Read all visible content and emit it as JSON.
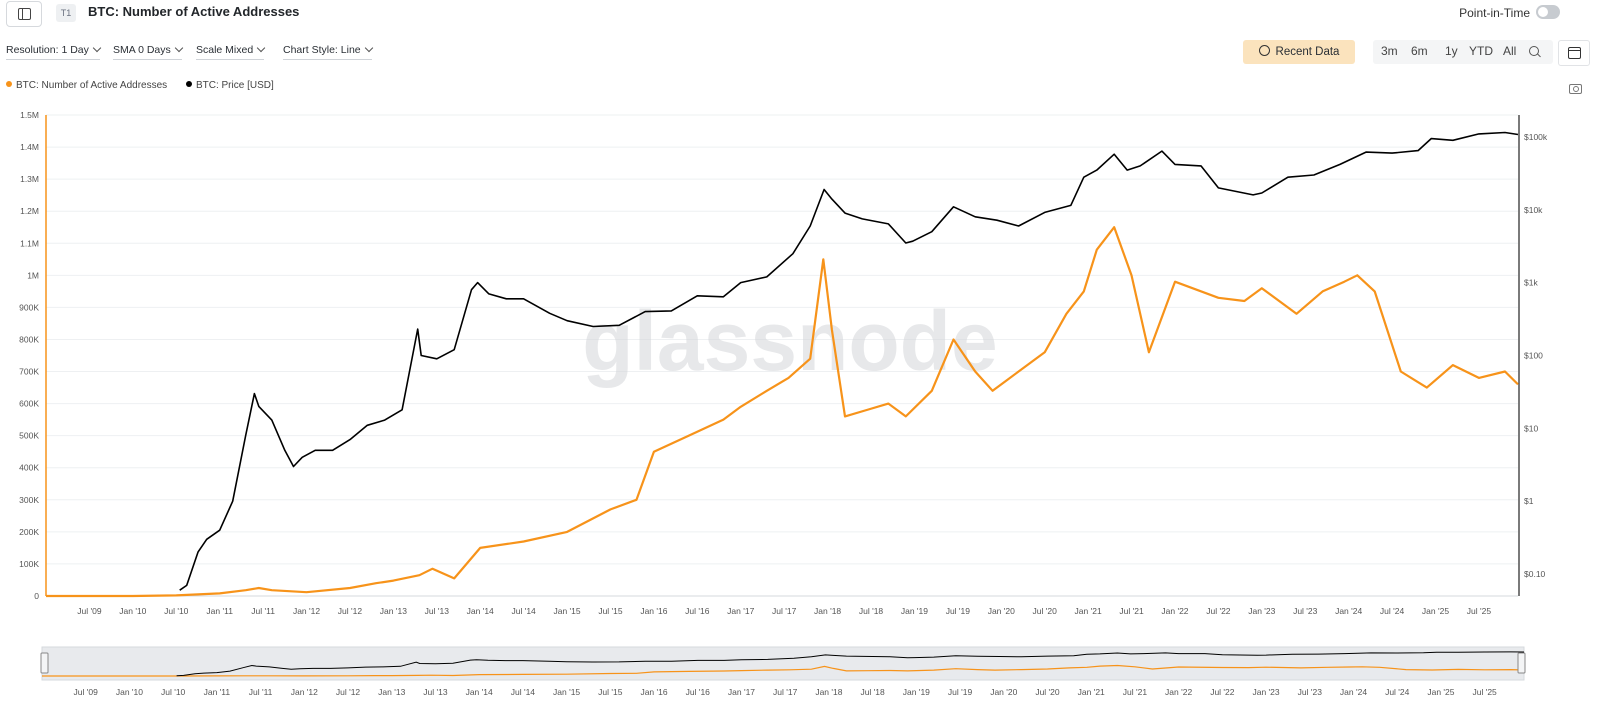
{
  "header": {
    "tag": "T1",
    "title": "BTC: Number of Active Addresses",
    "point_in_time_label": "Point-in-Time"
  },
  "controls": {
    "resolution": "Resolution: 1 Day",
    "sma": "SMA 0 Days",
    "scale": "Scale Mixed",
    "chart_style": "Chart Style: Line",
    "recent_data": "Recent Data",
    "ranges": [
      "3m",
      "6m",
      "1y",
      "YTD",
      "All"
    ]
  },
  "legend": {
    "items": [
      {
        "label": "BTC: Number of Active Addresses",
        "color": "#f7931a"
      },
      {
        "label": "BTC: Price [USD]",
        "color": "#000000"
      }
    ]
  },
  "watermark": "glassnode",
  "colors": {
    "addresses": "#f7931a",
    "price": "#000000",
    "navigator_bg": "#e8eaed"
  },
  "chart_data": {
    "type": "line",
    "title": "BTC: Number of Active Addresses",
    "x_tick_labels": [
      "Jul '09",
      "Jan '10",
      "Jul '10",
      "Jan '11",
      "Jul '11",
      "Jan '12",
      "Jul '12",
      "Jan '13",
      "Jul '13",
      "Jan '14",
      "Jul '14",
      "Jan '15",
      "Jul '15",
      "Jan '16",
      "Jul '16",
      "Jan '17",
      "Jul '17",
      "Jan '18",
      "Jul '18",
      "Jan '19",
      "Jul '19",
      "Jan '20",
      "Jul '20",
      "Jan '21",
      "Jul '21",
      "Jan '22",
      "Jul '22",
      "Jan '23",
      "Jul '23",
      "Jan '24",
      "Jul '24",
      "Jan '25",
      "Jul '25"
    ],
    "x_range": [
      2009.0,
      2025.95
    ],
    "y_left": {
      "label": "",
      "range": [
        0,
        1500000
      ],
      "tick_labels": [
        "0",
        "100K",
        "200K",
        "300K",
        "400K",
        "500K",
        "600K",
        "700K",
        "800K",
        "900K",
        "1M",
        "1.1M",
        "1.2M",
        "1.3M",
        "1.4M",
        "1.5M"
      ]
    },
    "y_right": {
      "label": "",
      "scale": "log",
      "range": [
        0.05,
        200000
      ],
      "ticks": [
        0.1,
        1,
        10,
        100,
        1000,
        10000,
        100000
      ],
      "tick_labels": [
        "$0.10",
        "$1",
        "$10",
        "$100",
        "$1k",
        "$10k",
        "$100k"
      ]
    },
    "grid": true,
    "series": [
      {
        "name": "BTC: Number of Active Addresses",
        "axis": "left",
        "color": "#f7931a",
        "x": [
          2009.0,
          2010.0,
          2010.5,
          2011.0,
          2011.3,
          2011.45,
          2011.6,
          2012.0,
          2012.5,
          2012.8,
          2013.0,
          2013.3,
          2013.45,
          2013.7,
          2014.0,
          2014.5,
          2015.0,
          2015.5,
          2015.8,
          2016.0,
          2016.4,
          2016.8,
          2017.0,
          2017.3,
          2017.55,
          2017.8,
          2017.95,
          2018.05,
          2018.2,
          2018.45,
          2018.7,
          2018.9,
          2019.2,
          2019.45,
          2019.7,
          2019.9,
          2020.2,
          2020.5,
          2020.75,
          2020.95,
          2021.1,
          2021.3,
          2021.5,
          2021.7,
          2022.0,
          2022.5,
          2022.8,
          2023.0,
          2023.4,
          2023.7,
          2023.95,
          2024.1,
          2024.3,
          2024.6,
          2024.9,
          2025.2,
          2025.5,
          2025.8,
          2025.95
        ],
        "values": [
          0,
          0,
          2000,
          8000,
          18000,
          25000,
          18000,
          12000,
          25000,
          40000,
          48000,
          65000,
          85000,
          55000,
          150000,
          170000,
          200000,
          270000,
          300000,
          450000,
          500000,
          550000,
          590000,
          640000,
          680000,
          740000,
          1050000,
          830000,
          560000,
          580000,
          600000,
          560000,
          640000,
          800000,
          700000,
          640000,
          700000,
          760000,
          880000,
          950000,
          1080000,
          1150000,
          1000000,
          760000,
          980000,
          930000,
          920000,
          960000,
          880000,
          950000,
          980000,
          1000000,
          950000,
          700000,
          650000,
          720000,
          680000,
          700000,
          660000
        ]
      },
      {
        "name": "BTC: Price [USD]",
        "axis": "right",
        "color": "#000000",
        "x": [
          2010.54,
          2010.62,
          2010.75,
          2010.85,
          2011.0,
          2011.15,
          2011.3,
          2011.4,
          2011.45,
          2011.6,
          2011.75,
          2011.85,
          2011.95,
          2012.1,
          2012.3,
          2012.5,
          2012.7,
          2012.9,
          2013.1,
          2013.28,
          2013.32,
          2013.5,
          2013.7,
          2013.9,
          2013.97,
          2014.1,
          2014.3,
          2014.5,
          2014.8,
          2015.0,
          2015.3,
          2015.6,
          2015.9,
          2016.2,
          2016.5,
          2016.8,
          2017.0,
          2017.3,
          2017.6,
          2017.8,
          2017.96,
          2018.05,
          2018.2,
          2018.4,
          2018.7,
          2018.9,
          2018.98,
          2019.2,
          2019.45,
          2019.7,
          2019.95,
          2020.2,
          2020.5,
          2020.8,
          2020.95,
          2021.1,
          2021.3,
          2021.45,
          2021.6,
          2021.85,
          2022.0,
          2022.3,
          2022.5,
          2022.9,
          2023.0,
          2023.3,
          2023.6,
          2023.9,
          2024.2,
          2024.5,
          2024.8,
          2024.95,
          2025.2,
          2025.5,
          2025.8,
          2025.95
        ],
        "values": [
          0.06,
          0.07,
          0.2,
          0.3,
          0.4,
          1.0,
          8,
          30,
          20,
          13,
          5,
          3,
          4,
          5,
          5,
          7,
          11,
          13,
          18,
          230,
          100,
          90,
          120,
          800,
          1000,
          700,
          600,
          600,
          380,
          300,
          250,
          260,
          400,
          410,
          660,
          640,
          1000,
          1200,
          2500,
          6000,
          19000,
          14000,
          9000,
          7500,
          6400,
          3500,
          3700,
          5000,
          11000,
          8000,
          7200,
          6000,
          9200,
          11500,
          28000,
          35000,
          58000,
          35000,
          40000,
          64000,
          42000,
          40000,
          20000,
          16000,
          17000,
          28000,
          30000,
          42000,
          62000,
          60000,
          65000,
          95000,
          90000,
          110000,
          115000,
          108000
        ]
      }
    ]
  }
}
